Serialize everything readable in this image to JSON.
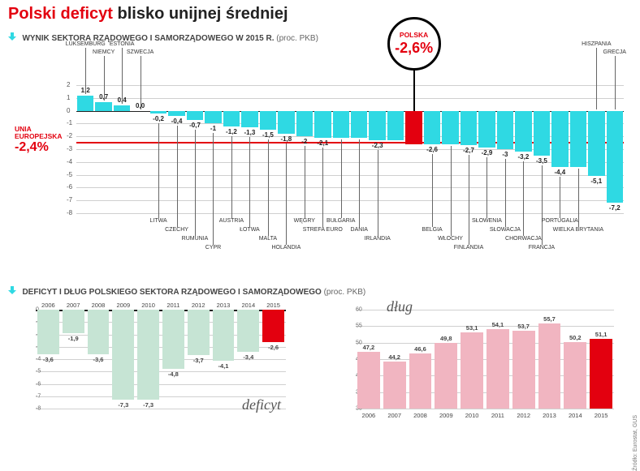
{
  "colors": {
    "cyan": "#2fd9e3",
    "red": "#e3000f",
    "paleGreen": "#c6e4d4",
    "pink": "#f1b5c1",
    "grid": "#cfcfcf",
    "text": "#222222"
  },
  "title": {
    "red": "Polski deficyt",
    "rest": " blisko unijnej średniej"
  },
  "main": {
    "heading": "WYNIK SEKTORA RZĄDOWEGO I SAMORZĄDOWEGO W 2015 R.",
    "unit": "(proc. PKB)",
    "ylim": [
      -8,
      2
    ],
    "ytick_step": 1,
    "eu": {
      "label": "UNIA\nEUROPEJSKA",
      "value": -2.4,
      "value_label": "-2,4%"
    },
    "polska": {
      "index": 18,
      "label": "POLSKA",
      "value_label": "-2,6%"
    },
    "data": [
      {
        "c": "LUKSEMBURG",
        "v": 1.2,
        "lbl": "1,2",
        "pos": "top"
      },
      {
        "c": "NIEMCY",
        "v": 0.7,
        "lbl": "0,7",
        "pos": "top"
      },
      {
        "c": "ESTONIA",
        "v": 0.4,
        "lbl": "0,4",
        "pos": "top"
      },
      {
        "c": "SZWECJA",
        "v": 0.0,
        "lbl": "0,0",
        "pos": "top"
      },
      {
        "c": "LITWA",
        "v": -0.2,
        "lbl": "-0,2",
        "pos": "bot"
      },
      {
        "c": "CZECHY",
        "v": -0.4,
        "lbl": "-0,4",
        "pos": "bot"
      },
      {
        "c": "RUMUNIA",
        "v": -0.7,
        "lbl": "-0,7",
        "pos": "bot"
      },
      {
        "c": "CYPR",
        "v": -1.0,
        "lbl": "-1",
        "pos": "bot"
      },
      {
        "c": "AUSTRIA",
        "v": -1.2,
        "lbl": "-1,2",
        "pos": "bot"
      },
      {
        "c": "ŁOTWA",
        "v": -1.3,
        "lbl": "-1,3",
        "pos": "bot"
      },
      {
        "c": "MALTA",
        "v": -1.5,
        "lbl": "-1,5",
        "pos": "bot"
      },
      {
        "c": "HOLANDIA",
        "v": -1.8,
        "lbl": "-1,8",
        "pos": "bot"
      },
      {
        "c": "WĘGRY",
        "v": -2.0,
        "lbl": "-2",
        "pos": "bot"
      },
      {
        "c": "STREFA EURO",
        "v": -2.1,
        "lbl": "-2,1",
        "pos": "bot"
      },
      {
        "c": "BUŁGARIA",
        "v": -2.1,
        "lbl": "",
        "pos": "bot"
      },
      {
        "c": "DANIA",
        "v": -2.1,
        "lbl": "",
        "pos": "bot"
      },
      {
        "c": "IRLANDIA",
        "v": -2.3,
        "lbl": "-2,3",
        "pos": "bot"
      },
      {
        "c": "",
        "v": -2.3,
        "lbl": "",
        "pos": "bot"
      },
      {
        "c": "",
        "v": -2.6,
        "lbl": "",
        "pos": "bot",
        "hl": true
      },
      {
        "c": "BELGIA",
        "v": -2.6,
        "lbl": "-2,6",
        "pos": "bot"
      },
      {
        "c": "WŁOCHY",
        "v": -2.6,
        "lbl": "",
        "pos": "bot"
      },
      {
        "c": "FINLANDIA",
        "v": -2.7,
        "lbl": "-2,7",
        "pos": "bot"
      },
      {
        "c": "SŁOWENIA",
        "v": -2.9,
        "lbl": "-2,9",
        "pos": "bot"
      },
      {
        "c": "SŁOWACJA",
        "v": -3.0,
        "lbl": "-3",
        "pos": "bot"
      },
      {
        "c": "CHORWACJA",
        "v": -3.2,
        "lbl": "-3,2",
        "pos": "bot"
      },
      {
        "c": "FRANCJA",
        "v": -3.5,
        "lbl": "-3,5",
        "pos": "bot"
      },
      {
        "c": "PORTUGALIA",
        "v": -4.4,
        "lbl": "-4,4",
        "pos": "bot"
      },
      {
        "c": "WIELKA BRYTANIA",
        "v": -4.4,
        "lbl": "",
        "pos": "bot"
      },
      {
        "c": "HISZPANIA",
        "v": -5.1,
        "lbl": "-5,1",
        "pos": "top"
      },
      {
        "c": "GRECJA",
        "v": -7.2,
        "lbl": "-7,2",
        "pos": "top"
      }
    ]
  },
  "bottom": {
    "heading": "DEFICYT I DŁUG POLSKIEGO SEKTORA RZĄDOWEGO I SAMORZĄDOWEGO",
    "unit": "(proc. PKB)",
    "years": [
      "2006",
      "2007",
      "2008",
      "2009",
      "2010",
      "2011",
      "2012",
      "2013",
      "2014",
      "2015"
    ],
    "deficit": {
      "label": "deficyt",
      "ylim": [
        -8,
        0
      ],
      "ytick_step": 1,
      "values": [
        -3.6,
        -1.9,
        -3.6,
        -7.3,
        -7.3,
        -4.8,
        -3.7,
        -4.1,
        -3.4,
        -2.6
      ],
      "labels": [
        "-3,6",
        "-1,9",
        "-3,6",
        "-7,3",
        "-7,3",
        "-4,8",
        "-3,7",
        "-4,1",
        "-3,4",
        "-2,6"
      ],
      "hl_index": 9
    },
    "debt": {
      "label": "dług",
      "ylim": [
        30,
        60
      ],
      "ytick_step": 5,
      "values": [
        47.2,
        44.2,
        46.6,
        49.8,
        53.1,
        54.1,
        53.7,
        55.7,
        50.2,
        51.1
      ],
      "labels": [
        "47,2",
        "44,2",
        "46,6",
        "49,8",
        "53,1",
        "54,1",
        "53,7",
        "55,7",
        "50,2",
        "51,1"
      ],
      "hl_index": 9
    }
  },
  "source": "Źródło: Eurostat, GUS"
}
